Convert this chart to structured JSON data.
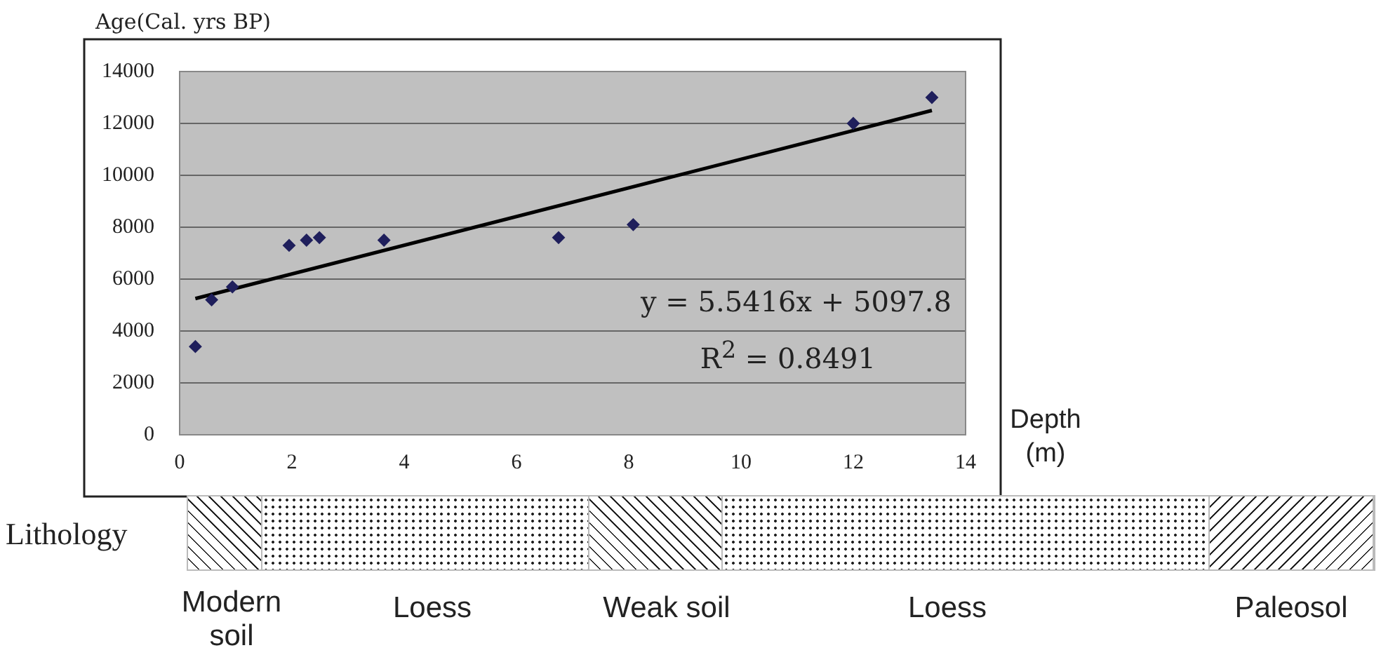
{
  "chart_data": {
    "type": "scatter",
    "xlabel": "Depth (m)",
    "ylabel": "Age(Cal. yrs BP)",
    "xlim": [
      0,
      14
    ],
    "xticks": [
      0,
      2,
      4,
      6,
      8,
      10,
      12,
      14
    ],
    "ylim": [
      0,
      14000
    ],
    "yticks": [
      0,
      2000,
      4000,
      6000,
      8000,
      10000,
      12000,
      14000
    ],
    "grid": "y",
    "legend": false,
    "marker": "diamond",
    "series": [
      {
        "color": "#1f1f5c",
        "x": [
          0.28,
          0.57,
          0.94,
          1.95,
          2.26,
          2.49,
          3.64,
          6.75,
          8.08,
          12.0,
          13.4
        ],
        "values": [
          3400,
          5200,
          5700,
          7300,
          7500,
          7600,
          7500,
          7600,
          8100,
          12000,
          13000
        ]
      },
      {
        "type": "line",
        "marker": "none",
        "color": "#000000",
        "x": [
          0.28,
          13.4
        ],
        "values": [
          5250,
          12500
        ]
      }
    ],
    "annotations": [
      "y = 5.5416x + 5097.8",
      "R$^{2}$ = 0.8491",
      "Lithology",
      "Modern soil",
      "Loess",
      "Weak soil",
      "Loess",
      "Paleosol"
    ]
  }
}
